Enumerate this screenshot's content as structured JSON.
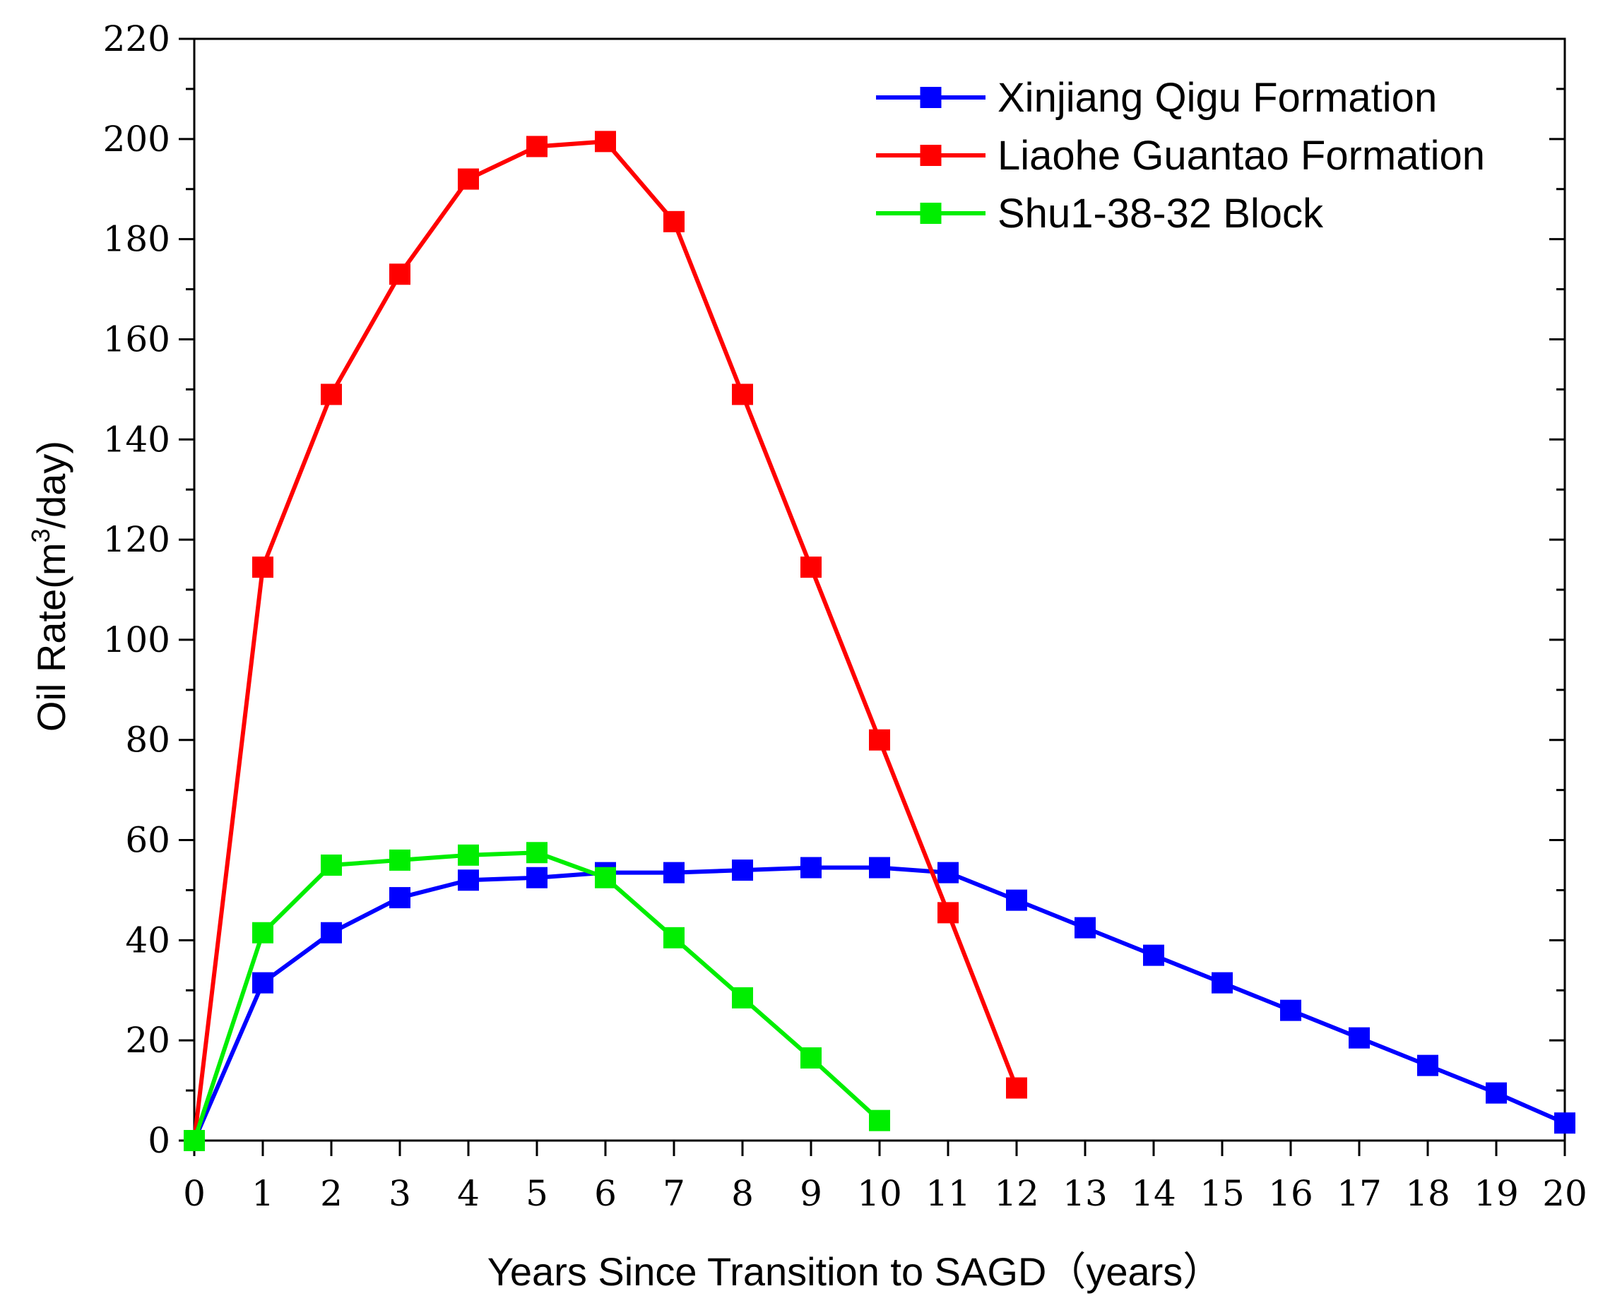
{
  "chart_data": {
    "type": "line",
    "xlabel": "Years Since Transition to SAGD（years）",
    "ylabel": {
      "prefix": "Oil Rate(m",
      "sup": "3",
      "suffix": "/day)"
    },
    "xlim": [
      0,
      20
    ],
    "ylim": [
      0,
      220
    ],
    "xticks": [
      0,
      1,
      2,
      3,
      4,
      5,
      6,
      7,
      8,
      9,
      10,
      11,
      12,
      13,
      14,
      15,
      16,
      17,
      18,
      19,
      20
    ],
    "yticks": [
      0,
      20,
      40,
      60,
      80,
      100,
      120,
      140,
      160,
      180,
      200,
      220
    ],
    "legend_position": "top-right",
    "series": [
      {
        "name": "Xinjiang Qigu Formation",
        "color": "#0000ff",
        "marker": "square",
        "x": [
          0,
          1,
          2,
          3,
          4,
          5,
          6,
          7,
          8,
          9,
          10,
          11,
          12,
          13,
          14,
          15,
          16,
          17,
          18,
          19,
          20
        ],
        "y": [
          0,
          31.5,
          41.5,
          48.5,
          52,
          52.5,
          53.5,
          53.5,
          54,
          54.5,
          54.5,
          53.5,
          48,
          42.5,
          37,
          31.5,
          26,
          20.5,
          15,
          9.5,
          3.5
        ]
      },
      {
        "name": "Liaohe Guantao Formation",
        "color": "#ff0000",
        "marker": "square",
        "x": [
          0,
          1,
          2,
          3,
          4,
          5,
          6,
          7,
          8,
          9,
          10,
          11,
          12
        ],
        "y": [
          0,
          114.5,
          149,
          173,
          192,
          198.5,
          199.5,
          183.5,
          149,
          114.5,
          80,
          45.5,
          10.5
        ]
      },
      {
        "name": "Shu1-38-32 Block",
        "color": "#00ee00",
        "marker": "square",
        "x": [
          0,
          1,
          2,
          3,
          4,
          5,
          6,
          7,
          8,
          9,
          10
        ],
        "y": [
          0,
          41.5,
          55,
          56,
          57,
          57.5,
          52.5,
          40.5,
          28.5,
          16.5,
          4
        ]
      }
    ]
  }
}
